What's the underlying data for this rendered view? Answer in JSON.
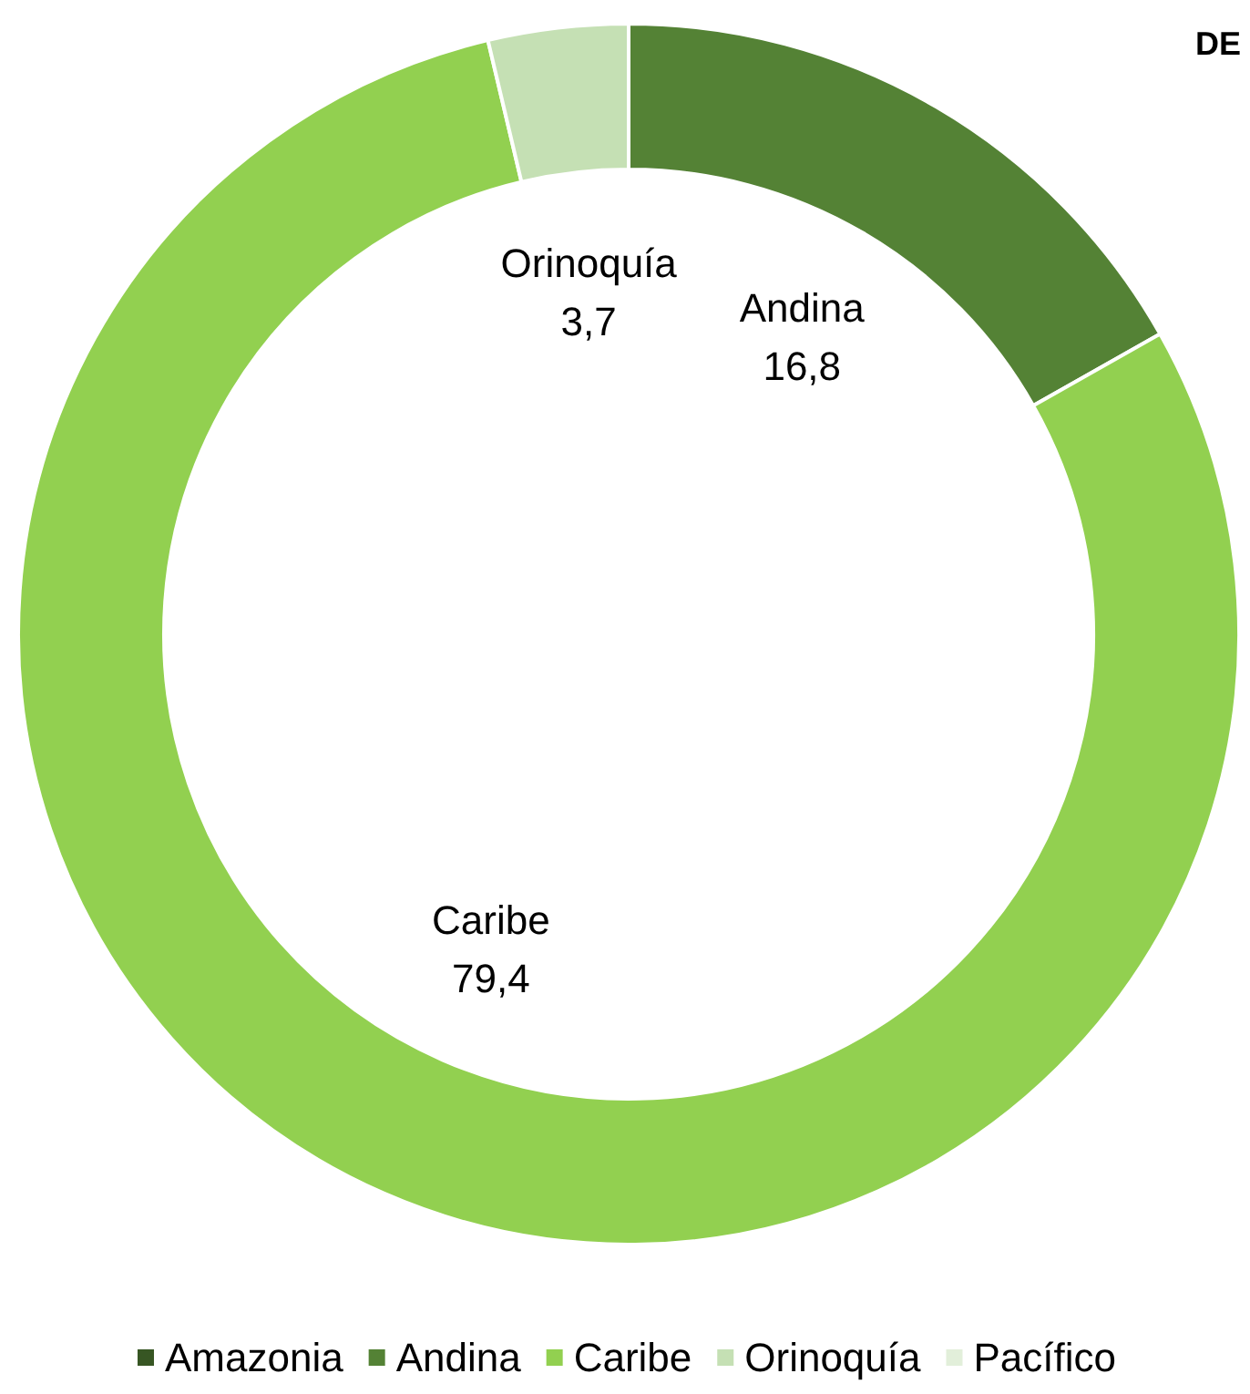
{
  "chart_data": {
    "type": "donut",
    "title": "DE",
    "categories": [
      "Amazonia",
      "Andina",
      "Caribe",
      "Orinoquía",
      "Pacífico"
    ],
    "values": [
      0,
      16.8,
      79.4,
      3.7,
      0
    ],
    "value_labels": [
      null,
      "16,8",
      "79,4",
      "3,7",
      null
    ],
    "colors": [
      "#375623",
      "#548235",
      "#92d050",
      "#c5e0b4",
      "#e2efda"
    ],
    "legend": "bottom"
  }
}
